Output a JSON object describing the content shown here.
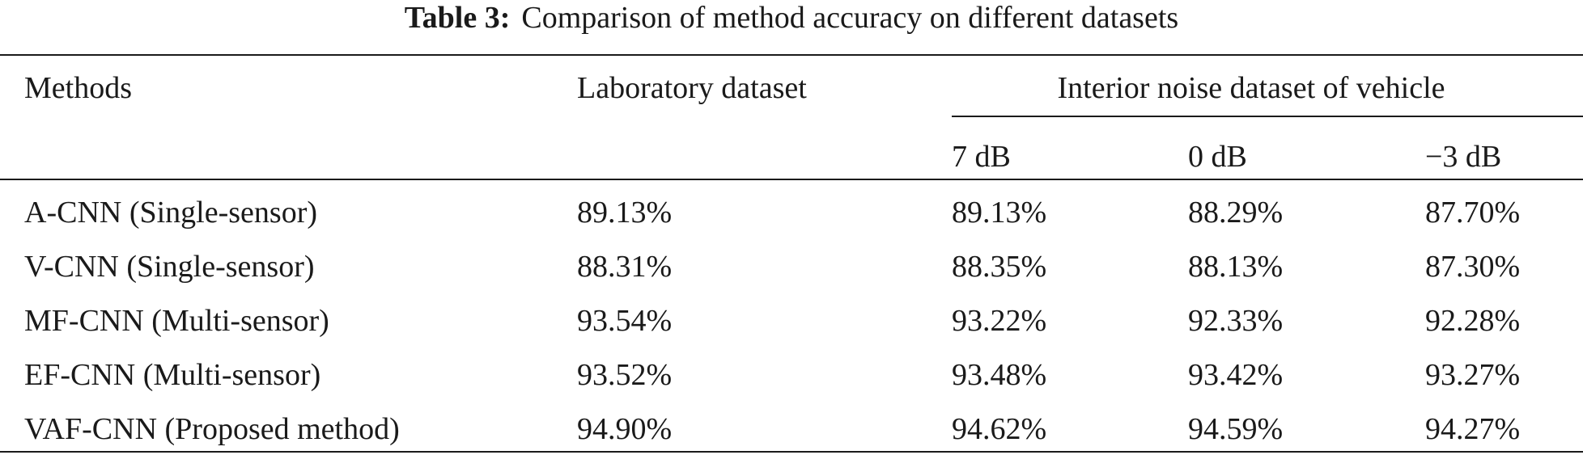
{
  "caption": {
    "label": "Table 3:",
    "text": "Comparison of method accuracy on different datasets"
  },
  "header": {
    "methods": "Methods",
    "laboratory": "Laboratory dataset",
    "interior": "Interior noise dataset of vehicle",
    "sub": [
      "7 dB",
      "0 dB",
      "−3 dB"
    ]
  },
  "rows": [
    {
      "method": "A-CNN (Single-sensor)",
      "lab": "89.13%",
      "db7": "89.13%",
      "db0": "88.29%",
      "dbm3": "87.70%"
    },
    {
      "method": "V-CNN (Single-sensor)",
      "lab": "88.31%",
      "db7": "88.35%",
      "db0": "88.13%",
      "dbm3": "87.30%"
    },
    {
      "method": "MF-CNN (Multi-sensor)",
      "lab": "93.54%",
      "db7": "93.22%",
      "db0": "92.33%",
      "dbm3": "92.28%"
    },
    {
      "method": "EF-CNN (Multi-sensor)",
      "lab": "93.52%",
      "db7": "93.48%",
      "db0": "93.42%",
      "dbm3": "93.27%"
    },
    {
      "method": "VAF-CNN (Proposed method)",
      "lab": "94.90%",
      "db7": "94.62%",
      "db0": "94.59%",
      "dbm3": "94.27%"
    }
  ]
}
